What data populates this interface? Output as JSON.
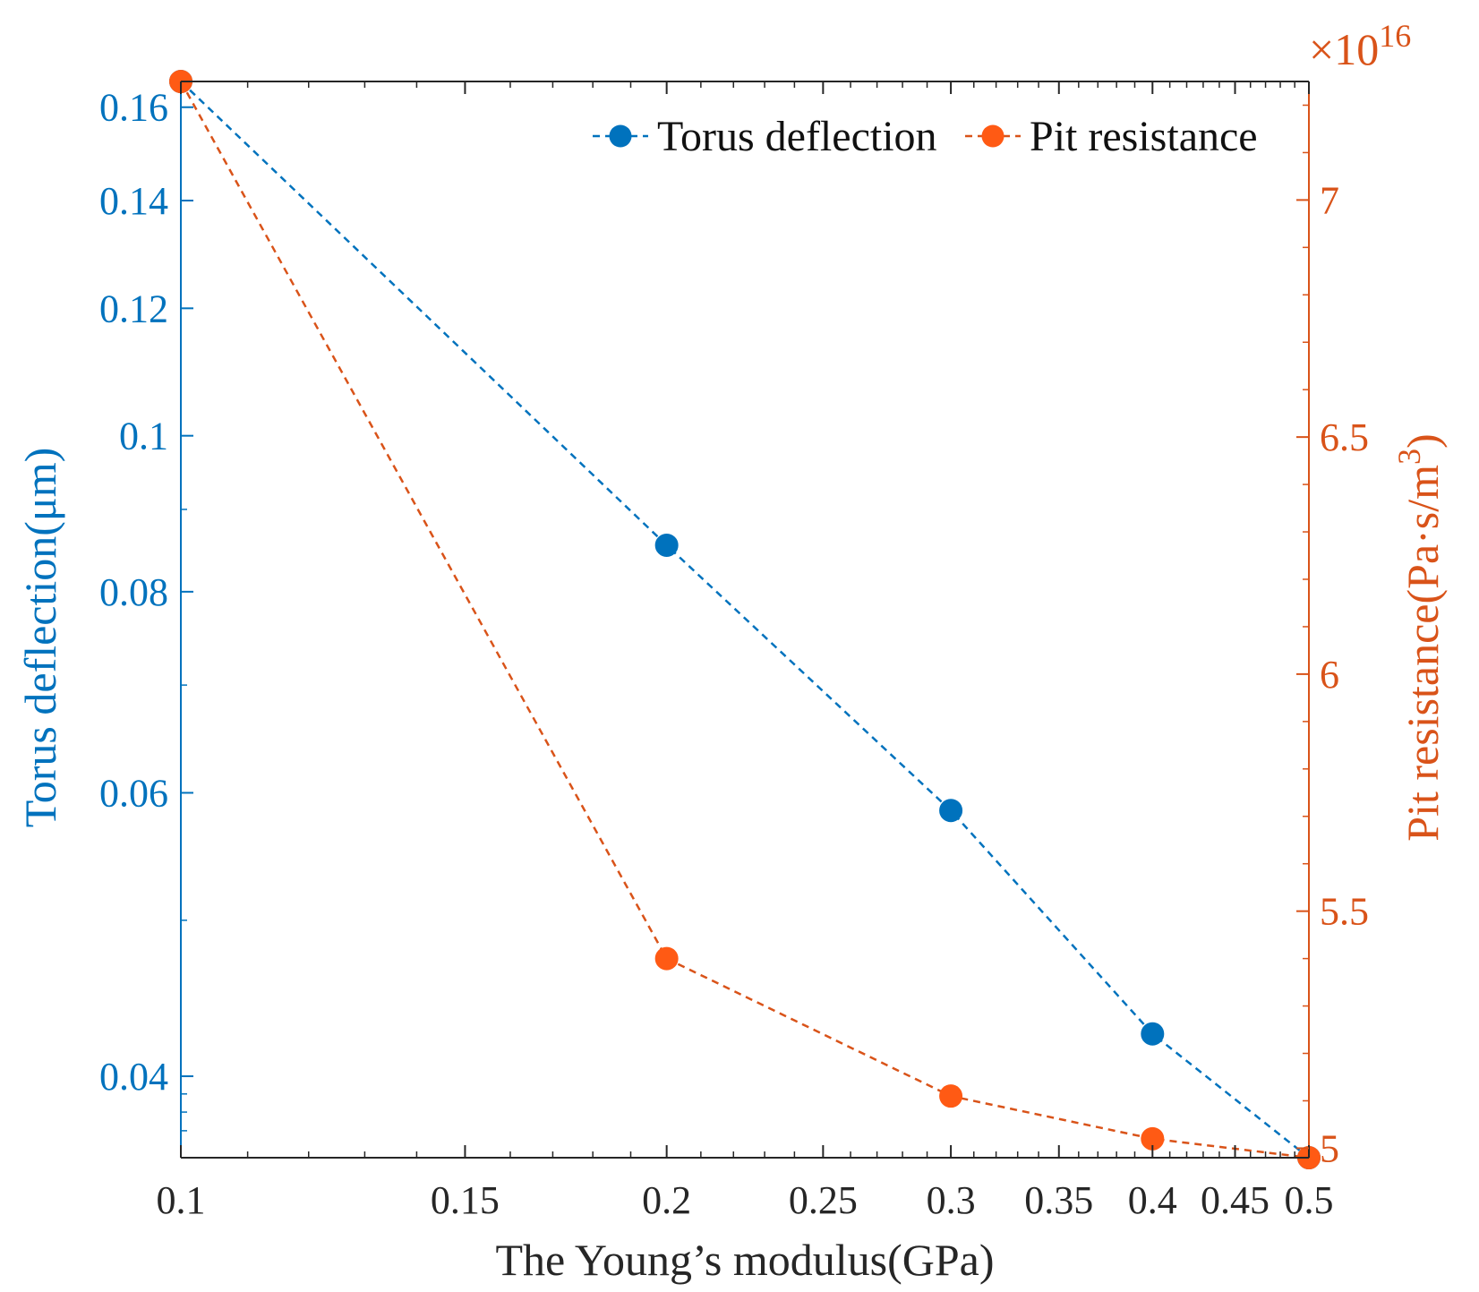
{
  "chart_data": {
    "type": "line",
    "title": "",
    "xlabel": "The Young’s modulus(GPa)",
    "xscale": "log",
    "xlim": [
      0.1,
      0.5
    ],
    "xticks": [
      0.1,
      0.15,
      0.2,
      0.25,
      0.3,
      0.35,
      0.4,
      0.45,
      0.5
    ],
    "xtick_labels": [
      "0.1",
      "0.15",
      "0.2",
      "0.25",
      "0.3",
      "0.35",
      "0.4",
      "0.45",
      "0.5"
    ],
    "left_axis": {
      "label": "Torus deflection(μm)",
      "scale": "log",
      "ylim": [
        0.0356,
        0.166
      ],
      "ticks": [
        0.04,
        0.06,
        0.08,
        0.1,
        0.12,
        0.14,
        0.16
      ],
      "tick_labels": [
        "0.04",
        "0.06",
        "0.08",
        "0.1",
        "0.12",
        "0.14",
        "0.16"
      ],
      "color": "#0072BD"
    },
    "right_axis": {
      "label_main": "Pit resistance(Pa·s/m",
      "label_sup": "3",
      "label_close": ")",
      "multiplier_symbol": "×10",
      "multiplier_exponent": "16",
      "scale": "linear",
      "ylim": [
        4.98,
        7.25
      ],
      "ticks": [
        5,
        5.5,
        6,
        6.5,
        7
      ],
      "tick_labels": [
        "5",
        "5.5",
        "6",
        "6.5",
        "7"
      ],
      "color": "#D95319"
    },
    "series": [
      {
        "name": "Torus deflection",
        "axis": "left",
        "color": "#0072BD",
        "marker_color": "#0072BD",
        "line_style": "dashed",
        "x": [
          0.1,
          0.2,
          0.3,
          0.4,
          0.5
        ],
        "y": [
          0.166,
          0.0855,
          0.0585,
          0.0425,
          0.0356
        ]
      },
      {
        "name": "Pit resistance",
        "axis": "right",
        "color": "#D95319",
        "marker_color": "#FF5A14",
        "line_style": "dashed",
        "x": [
          0.1,
          0.2,
          0.3,
          0.4,
          0.5
        ],
        "y": [
          7.25,
          5.4,
          5.11,
          5.02,
          4.98
        ]
      }
    ],
    "legend": {
      "position": "top-right",
      "entries": [
        "Torus deflection",
        "Pit resistance"
      ]
    }
  }
}
